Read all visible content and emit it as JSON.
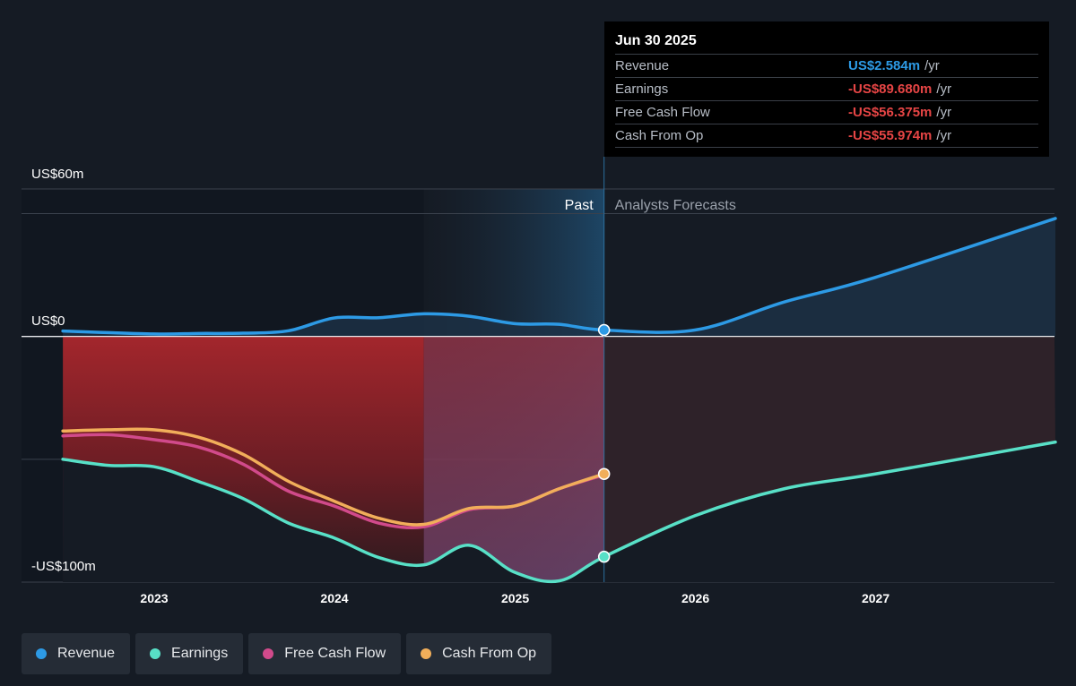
{
  "chart_data": {
    "type": "line",
    "y_axis": {
      "top_label": "US$60m",
      "zero_label": "US$0",
      "bottom_label": "-US$100m",
      "range": [
        -100,
        60
      ]
    },
    "x_ticks": [
      "2023",
      "2024",
      "2025",
      "2026",
      "2027"
    ],
    "regions": {
      "past_label": "Past",
      "forecast_label": "Analysts Forecasts"
    },
    "colors": {
      "revenue": "#2d9ae5",
      "earnings": "#58e0c7",
      "free_cash_flow": "#d14a8b",
      "cash_from_op": "#f1ae5a",
      "background": "#151b24"
    },
    "series": [
      {
        "name": "Revenue",
        "key": "revenue",
        "x": [
          "2022-06-30",
          "2022-12-31",
          "2023-03-31",
          "2023-06-30",
          "2023-09-30",
          "2023-12-31",
          "2024-03-31",
          "2024-06-30",
          "2024-09-30",
          "2024-12-31",
          "2025-03-31",
          "2025-06-30",
          "2025-12-31",
          "2026-06-30",
          "2026-12-31",
          "2027-12-31"
        ],
        "values": [
          2.2,
          1.0,
          1.2,
          1.3,
          2.3,
          7.5,
          7.6,
          9.2,
          8.2,
          5.2,
          4.9,
          2.584,
          2.584,
          14.0,
          24.0,
          48.0
        ]
      },
      {
        "name": "Earnings",
        "key": "earnings",
        "x": [
          "2022-06-30",
          "2022-09-30",
          "2022-12-31",
          "2023-03-31",
          "2023-06-30",
          "2023-09-30",
          "2023-12-31",
          "2024-03-31",
          "2024-06-30",
          "2024-09-30",
          "2024-12-31",
          "2025-03-31",
          "2025-06-30",
          "2025-12-31",
          "2026-06-30",
          "2026-12-31",
          "2027-12-31"
        ],
        "values": [
          -50,
          -52.5,
          -53,
          -59,
          -66,
          -76,
          -82,
          -90,
          -93,
          -85,
          -96,
          -99.5,
          -89.68,
          -73,
          -62,
          -56,
          -43
        ]
      },
      {
        "name": "Free Cash Flow",
        "key": "free_cash_flow",
        "x": [
          "2022-06-30",
          "2022-09-30",
          "2022-12-31",
          "2023-03-31",
          "2023-06-30",
          "2023-09-30",
          "2023-12-31",
          "2024-03-31",
          "2024-06-30",
          "2024-09-30",
          "2024-12-31",
          "2025-03-31",
          "2025-06-30"
        ],
        "values": [
          -40.5,
          -40,
          -42,
          -45,
          -52,
          -63,
          -69,
          -76,
          -77.5,
          -70.5,
          -69,
          -62,
          -56.375
        ]
      },
      {
        "name": "Cash From Op",
        "key": "cash_from_op",
        "x": [
          "2022-06-30",
          "2022-09-30",
          "2022-12-31",
          "2023-03-31",
          "2023-06-30",
          "2023-09-30",
          "2023-12-31",
          "2024-03-31",
          "2024-06-30",
          "2024-09-30",
          "2024-12-31",
          "2025-03-31",
          "2025-06-30"
        ],
        "values": [
          -38.5,
          -38,
          -38,
          -41,
          -48,
          -59,
          -67,
          -74,
          -76.5,
          -70,
          -69,
          -62,
          -55.974
        ]
      }
    ]
  },
  "tooltip": {
    "date": "Jun 30 2025",
    "rows": [
      {
        "name": "Revenue",
        "value": "US$2.584m",
        "unit": "/yr"
      },
      {
        "name": "Earnings",
        "value": "-US$89.680m",
        "unit": "/yr"
      },
      {
        "name": "Free Cash Flow",
        "value": "-US$56.375m",
        "unit": "/yr"
      },
      {
        "name": "Cash From Op",
        "value": "-US$55.974m",
        "unit": "/yr"
      }
    ]
  },
  "legend": [
    {
      "label": "Revenue",
      "key": "revenue"
    },
    {
      "label": "Earnings",
      "key": "earnings"
    },
    {
      "label": "Free Cash Flow",
      "key": "free_cash_flow"
    },
    {
      "label": "Cash From Op",
      "key": "cash_from_op"
    }
  ]
}
